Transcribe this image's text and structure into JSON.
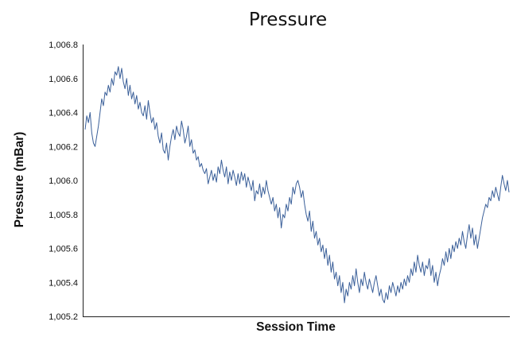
{
  "chart_data": {
    "type": "line",
    "title": "Pressure",
    "xlabel": "Session Time",
    "ylabel": "Pressure (mBar)",
    "ylim": [
      1005.2,
      1006.8
    ],
    "yticks": [
      "1,006.8",
      "1,006.6",
      "1,006.4",
      "1,006.2",
      "1,006.0",
      "1,005.8",
      "1,005.6",
      "1,005.4",
      "1,005.2"
    ],
    "ytick_values": [
      1006.8,
      1006.6,
      1006.4,
      1006.2,
      1006.0,
      1005.8,
      1005.6,
      1005.4,
      1005.2
    ],
    "x_ticks_shown": false,
    "grid": false,
    "legend": "none",
    "line_color": "#3a5f99",
    "series": [
      {
        "values": [
          1006.3,
          1006.38,
          1006.34,
          1006.4,
          1006.28,
          1006.22,
          1006.2,
          1006.26,
          1006.32,
          1006.4,
          1006.48,
          1006.44,
          1006.52,
          1006.5,
          1006.56,
          1006.52,
          1006.6,
          1006.56,
          1006.64,
          1006.62,
          1006.67,
          1006.6,
          1006.66,
          1006.58,
          1006.54,
          1006.6,
          1006.5,
          1006.56,
          1006.48,
          1006.52,
          1006.45,
          1006.5,
          1006.42,
          1006.46,
          1006.4,
          1006.38,
          1006.44,
          1006.36,
          1006.47,
          1006.4,
          1006.34,
          1006.37,
          1006.3,
          1006.34,
          1006.26,
          1006.22,
          1006.28,
          1006.18,
          1006.16,
          1006.22,
          1006.12,
          1006.2,
          1006.26,
          1006.3,
          1006.24,
          1006.32,
          1006.28,
          1006.26,
          1006.35,
          1006.3,
          1006.22,
          1006.26,
          1006.32,
          1006.2,
          1006.24,
          1006.16,
          1006.18,
          1006.12,
          1006.14,
          1006.08,
          1006.1,
          1006.06,
          1006.04,
          1006.07,
          1005.98,
          1006.02,
          1006.06,
          1006.0,
          1006.04,
          1005.99,
          1006.08,
          1006.04,
          1006.12,
          1006.06,
          1006.02,
          1006.08,
          1005.98,
          1006.05,
          1006.0,
          1006.06,
          1006.02,
          1005.97,
          1006.04,
          1005.98,
          1006.05,
          1006.0,
          1006.04,
          1005.96,
          1006.02,
          1005.98,
          1005.94,
          1006.0,
          1005.88,
          1005.94,
          1005.92,
          1005.98,
          1005.9,
          1005.96,
          1005.92,
          1006.0,
          1005.94,
          1005.9,
          1005.86,
          1005.9,
          1005.82,
          1005.86,
          1005.78,
          1005.84,
          1005.72,
          1005.8,
          1005.78,
          1005.86,
          1005.82,
          1005.9,
          1005.86,
          1005.96,
          1005.92,
          1005.98,
          1006.0,
          1005.96,
          1005.9,
          1005.94,
          1005.86,
          1005.8,
          1005.76,
          1005.82,
          1005.7,
          1005.76,
          1005.66,
          1005.7,
          1005.62,
          1005.66,
          1005.58,
          1005.62,
          1005.54,
          1005.6,
          1005.5,
          1005.56,
          1005.46,
          1005.52,
          1005.42,
          1005.46,
          1005.38,
          1005.44,
          1005.34,
          1005.4,
          1005.28,
          1005.36,
          1005.32,
          1005.4,
          1005.36,
          1005.44,
          1005.38,
          1005.48,
          1005.4,
          1005.34,
          1005.42,
          1005.38,
          1005.46,
          1005.4,
          1005.36,
          1005.42,
          1005.38,
          1005.34,
          1005.4,
          1005.44,
          1005.38,
          1005.32,
          1005.36,
          1005.3,
          1005.28,
          1005.34,
          1005.3,
          1005.38,
          1005.34,
          1005.4,
          1005.36,
          1005.32,
          1005.38,
          1005.34,
          1005.4,
          1005.36,
          1005.42,
          1005.38,
          1005.44,
          1005.4,
          1005.48,
          1005.44,
          1005.52,
          1005.46,
          1005.56,
          1005.5,
          1005.46,
          1005.52,
          1005.44,
          1005.5,
          1005.48,
          1005.54,
          1005.44,
          1005.5,
          1005.4,
          1005.46,
          1005.38,
          1005.44,
          1005.48,
          1005.54,
          1005.5,
          1005.58,
          1005.52,
          1005.6,
          1005.54,
          1005.62,
          1005.58,
          1005.64,
          1005.6,
          1005.66,
          1005.62,
          1005.7,
          1005.64,
          1005.6,
          1005.68,
          1005.74,
          1005.66,
          1005.72,
          1005.62,
          1005.68,
          1005.6,
          1005.66,
          1005.72,
          1005.78,
          1005.82,
          1005.86,
          1005.84,
          1005.9,
          1005.88,
          1005.94,
          1005.9,
          1005.96,
          1005.92,
          1005.88,
          1005.96,
          1006.03,
          1005.98,
          1005.94,
          1006.0,
          1005.93
        ]
      }
    ]
  }
}
